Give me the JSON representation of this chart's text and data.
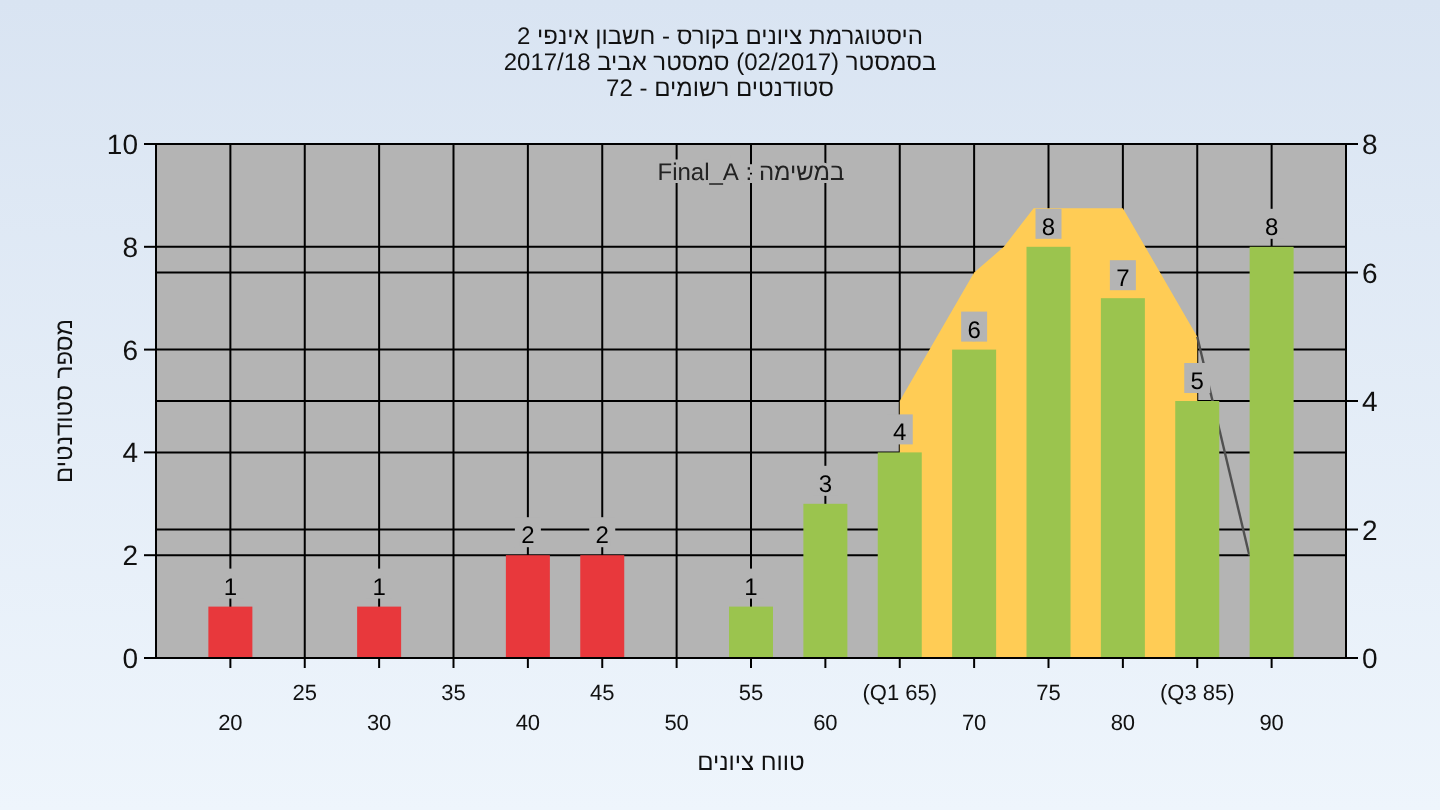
{
  "chart_data": {
    "type": "bar",
    "title": "היסטוגרמת ציונים בקורס - חשבון אינפי 2\nבסמסטר  (02/2017)  סמסטר אביב 2017/18\nסטודנטים רשומים - 72",
    "xlabel": "טווח ציונים",
    "ylabel": "מספר סטודנטים",
    "annotations": [
      "במשימה : Final_A"
    ],
    "xlim": [
      15,
      95
    ],
    "xticks": [
      20,
      30,
      40,
      50,
      60,
      70,
      80,
      90
    ],
    "x2lim": [
      15,
      95
    ],
    "x2ticks": [
      25,
      35,
      45,
      55,
      {
        "value": 65,
        "label": "(Q1 65)"
      },
      75,
      {
        "value": 85,
        "label": "(Q3 85)"
      }
    ],
    "ylim": [
      0,
      10
    ],
    "yticks": [
      0,
      2,
      4,
      6,
      8,
      10
    ],
    "y2lim": [
      0,
      8
    ],
    "y2ticks": [
      0,
      2,
      4,
      6,
      8
    ],
    "grid": true,
    "series": [
      {
        "type": "area",
        "axis": "y2",
        "color": "#ffcc55",
        "x": [
          65,
          70,
          72,
          74,
          80,
          85
        ],
        "values": [
          4,
          6,
          6.4,
          7,
          7,
          5
        ]
      },
      {
        "type": "line",
        "axis": "y2",
        "color": "#505050",
        "x": [
          85,
          88.5
        ],
        "values": [
          5,
          1.6
        ]
      },
      {
        "x": [
          20,
          30,
          40,
          45,
          55,
          60,
          65,
          70,
          75,
          80,
          85,
          90
        ],
        "values": [
          1,
          1,
          2,
          2,
          1,
          3,
          4,
          6,
          8,
          7,
          5,
          8
        ],
        "value_labels": [
          "1",
          "1",
          "2",
          "2",
          "1",
          "3",
          "4",
          "6",
          "8",
          "7",
          "5",
          "8"
        ],
        "colors": [
          "#e8383c",
          "#e8383c",
          "#e8383c",
          "#e8383c",
          "#9bc44e",
          "#9bc44e",
          "#9bc44e",
          "#9bc44e",
          "#9bc44e",
          "#9bc44e",
          "#9bc44e",
          "#9bc44e"
        ]
      }
    ]
  }
}
